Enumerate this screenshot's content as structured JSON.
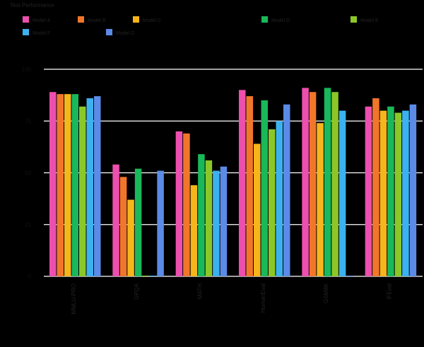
{
  "chart_data": {
    "type": "bar",
    "legend_title": "Test Performance",
    "legend_position": "top-left",
    "grid": true,
    "ylim": [
      0,
      100
    ],
    "yticks": [
      0,
      25,
      50,
      75,
      100
    ],
    "categories": [
      "MMLU-PRO",
      "GPQA",
      "MATH",
      "HumanEval",
      "GSM8K",
      "IFEval"
    ],
    "series": [
      {
        "name": "Model A",
        "color": "#ec4fad",
        "values": [
          89,
          54,
          70,
          90,
          91,
          82
        ]
      },
      {
        "name": "Model B",
        "color": "#f2762a",
        "values": [
          88,
          48,
          69,
          87,
          89,
          86
        ]
      },
      {
        "name": "Model C",
        "color": "#f6b51b",
        "values": [
          88,
          37,
          44,
          64,
          74,
          80
        ]
      },
      {
        "name": "Model D",
        "color": "#19b85a",
        "values": [
          88,
          52,
          59,
          85,
          91,
          82
        ]
      },
      {
        "name": "Model E",
        "color": "#8cc728",
        "values": [
          82,
          0,
          56,
          71,
          89,
          79
        ]
      },
      {
        "name": "Model F",
        "color": "#3bb2ef",
        "values": [
          86,
          0,
          51,
          75,
          80,
          80
        ]
      },
      {
        "name": "Model G",
        "color": "#5b8be6",
        "values": [
          87,
          51,
          53,
          83,
          0,
          83
        ]
      }
    ]
  }
}
